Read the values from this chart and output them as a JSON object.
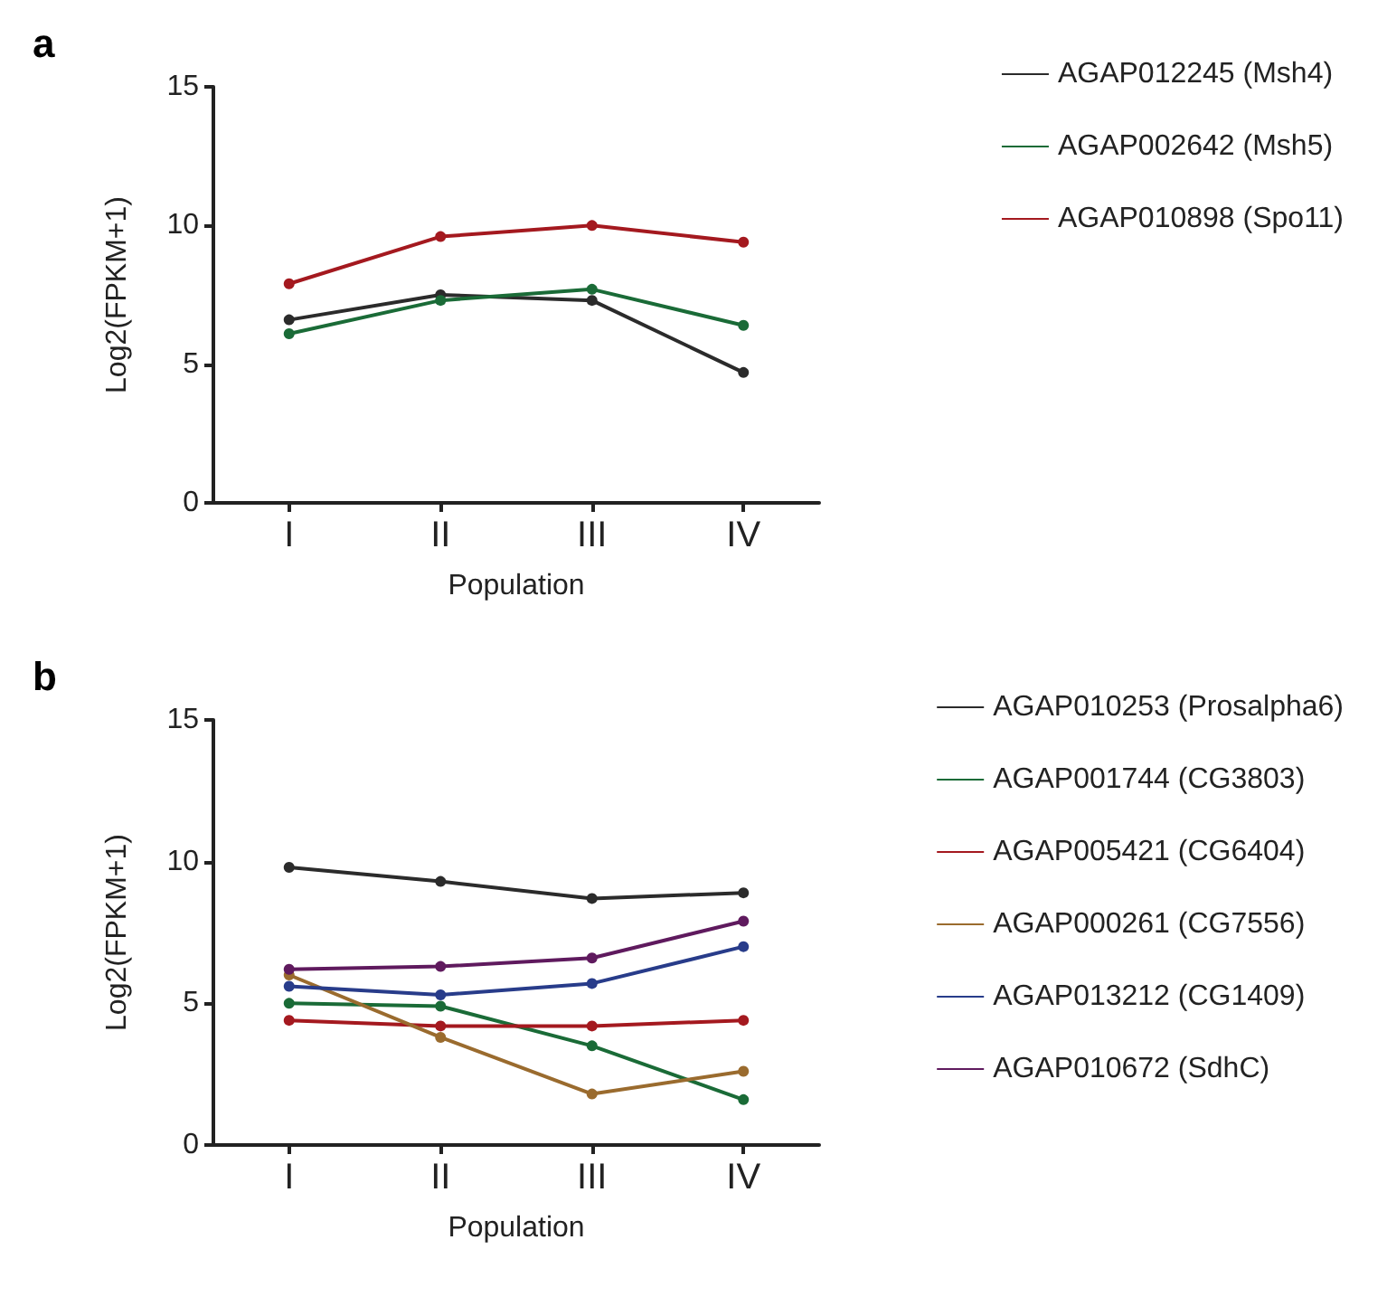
{
  "chart_data": [
    {
      "type": "line",
      "title": "a",
      "xlabel": "Population",
      "ylabel": "Log2(FPKM+1)",
      "categories": [
        "I",
        "II",
        "III",
        "IV"
      ],
      "series": [
        {
          "name": "AGAP012245 (Msh4)",
          "color": "#2b2b2b",
          "values": [
            6.6,
            7.5,
            7.3,
            4.7
          ]
        },
        {
          "name": "AGAP002642 (Msh5)",
          "color": "#1a6b37",
          "values": [
            6.1,
            7.3,
            7.7,
            6.4
          ]
        },
        {
          "name": "AGAP010898 (Spo11)",
          "color": "#a4191f",
          "values": [
            7.9,
            9.6,
            10.0,
            9.4
          ]
        }
      ],
      "ylim": [
        0,
        15
      ],
      "yticks": [
        0,
        5,
        10,
        15
      ],
      "grid": false,
      "legend": "right",
      "marker": "circle",
      "line_style": "solid"
    },
    {
      "type": "line",
      "title": "b",
      "xlabel": "Population",
      "ylabel": "Log2(FPKM+1)",
      "categories": [
        "I",
        "II",
        "III",
        "IV"
      ],
      "series": [
        {
          "name": "AGAP010253 (Prosalpha6)",
          "color": "#2b2b2b",
          "values": [
            9.8,
            9.3,
            8.7,
            8.9
          ]
        },
        {
          "name": "AGAP001744 (CG3803)",
          "color": "#1a6b37",
          "values": [
            5.0,
            4.9,
            3.5,
            1.6
          ]
        },
        {
          "name": "AGAP005421 (CG6404)",
          "color": "#a4191f",
          "values": [
            4.4,
            4.2,
            4.2,
            4.4
          ]
        },
        {
          "name": "AGAP000261 (CG7556)",
          "color": "#9a6b2e",
          "values": [
            6.0,
            3.8,
            1.8,
            2.6
          ]
        },
        {
          "name": "AGAP013212 (CG1409)",
          "color": "#283c8a",
          "values": [
            5.6,
            5.3,
            5.7,
            7.0
          ]
        },
        {
          "name": "AGAP010672 (SdhC)",
          "color": "#5f1a5e",
          "values": [
            6.2,
            6.3,
            6.6,
            7.9
          ]
        }
      ],
      "ylim": [
        0,
        15
      ],
      "yticks": [
        0,
        5,
        10,
        15
      ],
      "grid": false,
      "legend": "right",
      "marker": "circle",
      "line_style": "solid"
    }
  ]
}
